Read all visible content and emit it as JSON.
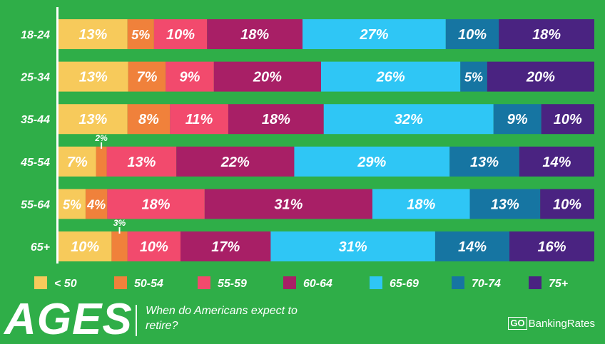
{
  "chart_data": {
    "type": "bar",
    "orientation": "horizontal-stacked-100",
    "title": "AGES",
    "subtitle": "When do Americans expect to retire?",
    "categories": [
      "18-24",
      "25-34",
      "35-44",
      "45-54",
      "55-64",
      "65+"
    ],
    "series": [
      {
        "name": "< 50",
        "color": "#f7ca5b",
        "values": [
          13,
          13,
          13,
          7,
          5,
          10
        ]
      },
      {
        "name": "50-54",
        "color": "#f0813b",
        "values": [
          5,
          7,
          8,
          2,
          4,
          3
        ]
      },
      {
        "name": "55-59",
        "color": "#f24a6d",
        "values": [
          10,
          9,
          11,
          13,
          18,
          10
        ]
      },
      {
        "name": "60-64",
        "color": "#a81f66",
        "values": [
          18,
          20,
          18,
          22,
          31,
          17
        ]
      },
      {
        "name": "65-69",
        "color": "#2fc6f5",
        "values": [
          27,
          26,
          32,
          29,
          18,
          31
        ]
      },
      {
        "name": "70-74",
        "color": "#1675a2",
        "values": [
          10,
          5,
          9,
          13,
          13,
          14
        ]
      },
      {
        "name": "75+",
        "color": "#4a2381",
        "values": [
          18,
          20,
          10,
          14,
          10,
          16
        ]
      }
    ],
    "legend": [
      "< 50",
      "50-54",
      "55-59",
      "60-64",
      "65-69",
      "70-74",
      "75+"
    ],
    "legend_position": "bottom"
  },
  "branding": {
    "go": "GO",
    "name": "BankingRates"
  },
  "colors": {
    "background": "#2fae48",
    "text": "#ffffff",
    "axis": "#ffffff"
  }
}
